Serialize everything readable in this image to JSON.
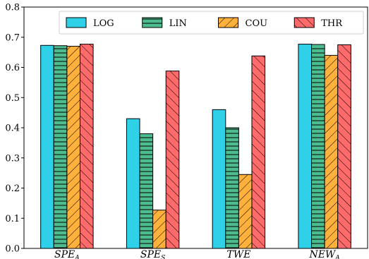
{
  "chart_data": {
    "type": "bar",
    "categories": [
      {
        "main": "SPE",
        "sub": "A"
      },
      {
        "main": "SPE",
        "sub": "S"
      },
      {
        "main": "TWE",
        "sub": ""
      },
      {
        "main": "NEW",
        "sub": "A"
      }
    ],
    "series": [
      {
        "name": "LOG",
        "color": "#2fd1e8",
        "pattern": "none",
        "values": [
          0.673,
          0.43,
          0.46,
          0.677
        ]
      },
      {
        "name": "LIN",
        "color": "#4dbd8f",
        "pattern": "horizontal",
        "values": [
          0.672,
          0.38,
          0.4,
          0.676
        ]
      },
      {
        "name": "COU",
        "color": "#ffb13b",
        "pattern": "forward-diagonal",
        "values": [
          0.67,
          0.127,
          0.245,
          0.64
        ]
      },
      {
        "name": "THR",
        "color": "#ff6b6b",
        "pattern": "back-diagonal",
        "values": [
          0.677,
          0.588,
          0.638,
          0.675
        ]
      }
    ],
    "yticks": [
      "0.0",
      "0.1",
      "0.2",
      "0.3",
      "0.4",
      "0.5",
      "0.6",
      "0.7",
      "0.8"
    ],
    "ylim": [
      0,
      0.8
    ],
    "xlabel": "",
    "ylabel": "",
    "title": "",
    "legend_placement": "top-right",
    "grid": false
  }
}
